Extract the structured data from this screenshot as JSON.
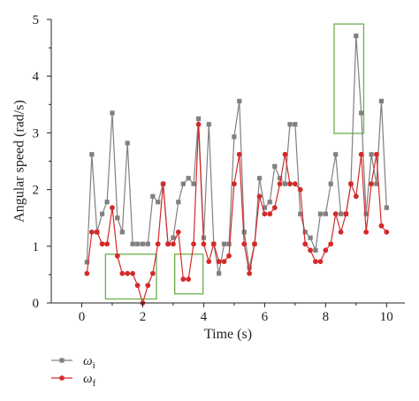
{
  "chart_data": {
    "type": "line",
    "xlabel": "Time (s)",
    "ylabel": "Angular speed (rad/s)",
    "xlim": [
      -1,
      10.6
    ],
    "ylim": [
      0,
      5
    ],
    "xticks": [
      0,
      2,
      4,
      6,
      8,
      10
    ],
    "xtick_labels": [
      "0",
      "2",
      "4",
      "6",
      "8",
      "10"
    ],
    "yticks": [
      0,
      1,
      2,
      3,
      4,
      5
    ],
    "ytick_labels": [
      "0",
      "1",
      "2",
      "3",
      "4",
      "5"
    ],
    "grid": false,
    "legend_position": "bottom-left",
    "series": [
      {
        "name": "ωi",
        "legend_main": "ω",
        "legend_sub": "i",
        "color": "#808080",
        "marker": "square",
        "x": [
          0.17,
          0.33,
          0.5,
          0.67,
          0.83,
          1.0,
          1.17,
          1.33,
          1.5,
          1.67,
          1.83,
          2.0,
          2.17,
          2.33,
          2.5,
          2.67,
          2.83,
          3.0,
          3.17,
          3.33,
          3.5,
          3.67,
          3.83,
          4.0,
          4.17,
          4.33,
          4.5,
          4.67,
          4.83,
          5.0,
          5.17,
          5.33,
          5.5,
          5.67,
          5.83,
          6.0,
          6.17,
          6.33,
          6.5,
          6.67,
          6.83,
          7.0,
          7.17,
          7.33,
          7.5,
          7.67,
          7.83,
          8.0,
          8.17,
          8.33,
          8.5,
          8.67,
          8.83,
          9.0,
          9.17,
          9.33,
          9.5,
          9.67,
          9.83,
          10.0
        ],
        "y": [
          0.72,
          2.62,
          1.25,
          1.57,
          1.78,
          3.35,
          1.5,
          1.25,
          2.82,
          1.04,
          1.04,
          1.04,
          1.04,
          1.88,
          1.78,
          2.1,
          1.04,
          1.15,
          1.78,
          2.1,
          2.2,
          2.1,
          3.25,
          1.15,
          3.15,
          1.04,
          0.52,
          1.04,
          1.04,
          2.93,
          3.56,
          1.25,
          0.62,
          1.04,
          2.2,
          1.68,
          1.78,
          2.41,
          2.2,
          2.1,
          3.15,
          3.15,
          1.57,
          1.25,
          1.15,
          0.93,
          1.57,
          1.57,
          2.1,
          2.62,
          1.57,
          1.57,
          2.1,
          4.71,
          3.35,
          1.57,
          2.62,
          2.1,
          3.56,
          1.68
        ],
        "highlights": [
          "squares"
        ]
      },
      {
        "name": "ωf",
        "legend_main": "ω",
        "legend_sub": "f",
        "color": "#d42a2a",
        "marker": "circle",
        "x": [
          0.17,
          0.33,
          0.5,
          0.67,
          0.83,
          1.0,
          1.17,
          1.33,
          1.5,
          1.67,
          1.83,
          2.0,
          2.17,
          2.33,
          2.5,
          2.67,
          2.83,
          3.0,
          3.17,
          3.33,
          3.5,
          3.67,
          3.83,
          4.0,
          4.17,
          4.33,
          4.5,
          4.67,
          4.83,
          5.0,
          5.17,
          5.33,
          5.5,
          5.67,
          5.83,
          6.0,
          6.17,
          6.33,
          6.5,
          6.67,
          6.83,
          7.0,
          7.17,
          7.33,
          7.5,
          7.67,
          7.83,
          8.0,
          8.17,
          8.33,
          8.5,
          8.67,
          8.83,
          9.0,
          9.17,
          9.33,
          9.5,
          9.67,
          9.83,
          10.0
        ],
        "y": [
          0.52,
          1.25,
          1.25,
          1.04,
          1.04,
          1.68,
          0.83,
          0.52,
          0.52,
          0.52,
          0.31,
          0.0,
          0.31,
          0.52,
          1.04,
          2.1,
          1.04,
          1.04,
          1.25,
          0.42,
          0.42,
          1.04,
          3.15,
          1.04,
          0.73,
          1.04,
          0.73,
          0.73,
          0.83,
          2.1,
          2.62,
          1.04,
          0.52,
          1.04,
          1.88,
          1.57,
          1.57,
          1.68,
          2.1,
          2.62,
          2.1,
          2.1,
          2.0,
          1.04,
          0.93,
          0.73,
          0.73,
          0.93,
          1.04,
          1.57,
          1.25,
          1.57,
          2.1,
          1.88,
          2.62,
          1.25,
          2.1,
          2.62,
          1.36,
          1.25
        ]
      }
    ],
    "highlight_boxes": [
      {
        "name": "box-1",
        "x_range": [
          0.78,
          2.45
        ],
        "y_range": [
          0.07,
          0.86
        ],
        "color": "#6ab04c"
      },
      {
        "name": "box-2",
        "x_range": [
          3.05,
          3.98
        ],
        "y_range": [
          0.16,
          0.86
        ],
        "color": "#6ab04c"
      },
      {
        "name": "box-3",
        "x_range": [
          8.28,
          9.25
        ],
        "y_range": [
          2.99,
          4.92
        ],
        "color": "#6ab04c"
      }
    ]
  }
}
